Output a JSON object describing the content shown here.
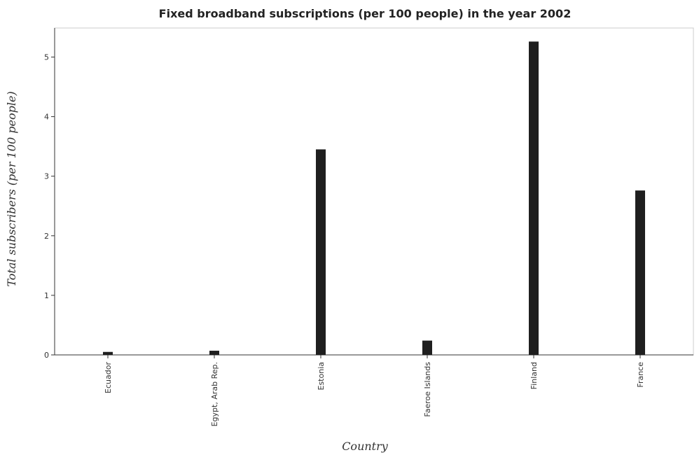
{
  "chart_data": {
    "type": "bar",
    "title": "Fixed broadband subscriptions (per 100 people) in the year 2002",
    "xlabel": "Country",
    "ylabel": "Total subscribers (per 100 people)",
    "categories": [
      "Ecuador",
      "Egypt, Arab Rep.",
      "Estonia",
      "Faeroe Islands",
      "Finland",
      "France"
    ],
    "values": [
      0.05,
      0.07,
      3.45,
      0.24,
      5.26,
      2.76
    ],
    "yticks": [
      "0",
      "1",
      "2",
      "3",
      "4",
      "5"
    ],
    "ylim": [
      0,
      5.5
    ],
    "grid": false,
    "legend": "none",
    "bar_color": "#1f1f1f"
  }
}
